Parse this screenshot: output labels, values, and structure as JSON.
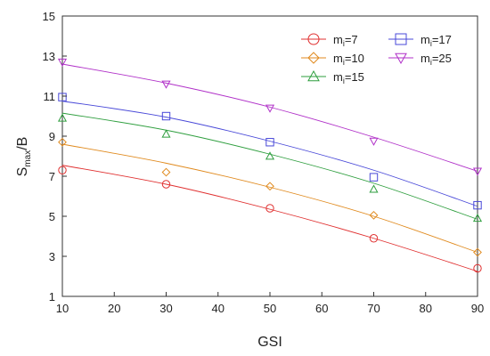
{
  "chart_data": {
    "type": "scatter",
    "xlabel": "GSI",
    "ylabel": {
      "base": "S",
      "sub": "max",
      "rest": "/B"
    },
    "xlim": [
      10,
      90
    ],
    "ylim": [
      1,
      15
    ],
    "xticks": [
      10,
      20,
      30,
      40,
      50,
      60,
      70,
      80,
      90
    ],
    "yticks": [
      1,
      3,
      5,
      7,
      9,
      11,
      13,
      15
    ],
    "grid": false,
    "legend_position": "top-right",
    "series": [
      {
        "name": "mi=7",
        "label_base": "m",
        "label_sub": "i",
        "label_rest": "=7",
        "marker": "circle",
        "color": "#e03030",
        "points": [
          [
            10,
            7.3
          ],
          [
            30,
            6.6
          ],
          [
            50,
            5.4
          ],
          [
            70,
            3.9
          ],
          [
            90,
            2.4
          ]
        ],
        "fit": [
          [
            10,
            7.55
          ],
          [
            30,
            6.6
          ],
          [
            50,
            5.35
          ],
          [
            70,
            3.9
          ],
          [
            90,
            2.25
          ]
        ]
      },
      {
        "name": "mi=10",
        "label_base": "m",
        "label_sub": "i",
        "label_rest": "=10",
        "marker": "diamond",
        "color": "#e08a1e",
        "points": [
          [
            10,
            8.7
          ],
          [
            30,
            7.2
          ],
          [
            50,
            6.5
          ],
          [
            70,
            5.05
          ],
          [
            90,
            3.2
          ]
        ],
        "fit": [
          [
            10,
            8.6
          ],
          [
            30,
            7.65
          ],
          [
            50,
            6.45
          ],
          [
            70,
            5.0
          ],
          [
            90,
            3.2
          ]
        ]
      },
      {
        "name": "mi=15",
        "label_base": "m",
        "label_sub": "i",
        "label_rest": "=15",
        "marker": "triangle-up",
        "color": "#2e9e3e",
        "points": [
          [
            10,
            9.9
          ],
          [
            30,
            9.1
          ],
          [
            50,
            8.0
          ],
          [
            70,
            6.35
          ],
          [
            90,
            4.9
          ]
        ],
        "fit": [
          [
            10,
            10.15
          ],
          [
            30,
            9.3
          ],
          [
            50,
            8.1
          ],
          [
            70,
            6.65
          ],
          [
            90,
            4.85
          ]
        ]
      },
      {
        "name": "mi=17",
        "label_base": "m",
        "label_sub": "i",
        "label_rest": "=17",
        "marker": "square",
        "color": "#4848d8",
        "points": [
          [
            10,
            10.95
          ],
          [
            30,
            10.0
          ],
          [
            50,
            8.7
          ],
          [
            70,
            6.95
          ],
          [
            90,
            5.55
          ]
        ],
        "fit": [
          [
            10,
            10.75
          ],
          [
            30,
            9.95
          ],
          [
            50,
            8.75
          ],
          [
            70,
            7.3
          ],
          [
            90,
            5.5
          ]
        ]
      },
      {
        "name": "mi=25",
        "label_base": "m",
        "label_sub": "i",
        "label_rest": "=25",
        "marker": "triangle-down",
        "color": "#b030c8",
        "points": [
          [
            10,
            12.7
          ],
          [
            30,
            11.6
          ],
          [
            50,
            10.4
          ],
          [
            70,
            8.75
          ],
          [
            90,
            7.25
          ]
        ],
        "fit": [
          [
            10,
            12.6
          ],
          [
            30,
            11.65
          ],
          [
            50,
            10.45
          ],
          [
            70,
            8.95
          ],
          [
            90,
            7.25
          ]
        ]
      }
    ]
  }
}
